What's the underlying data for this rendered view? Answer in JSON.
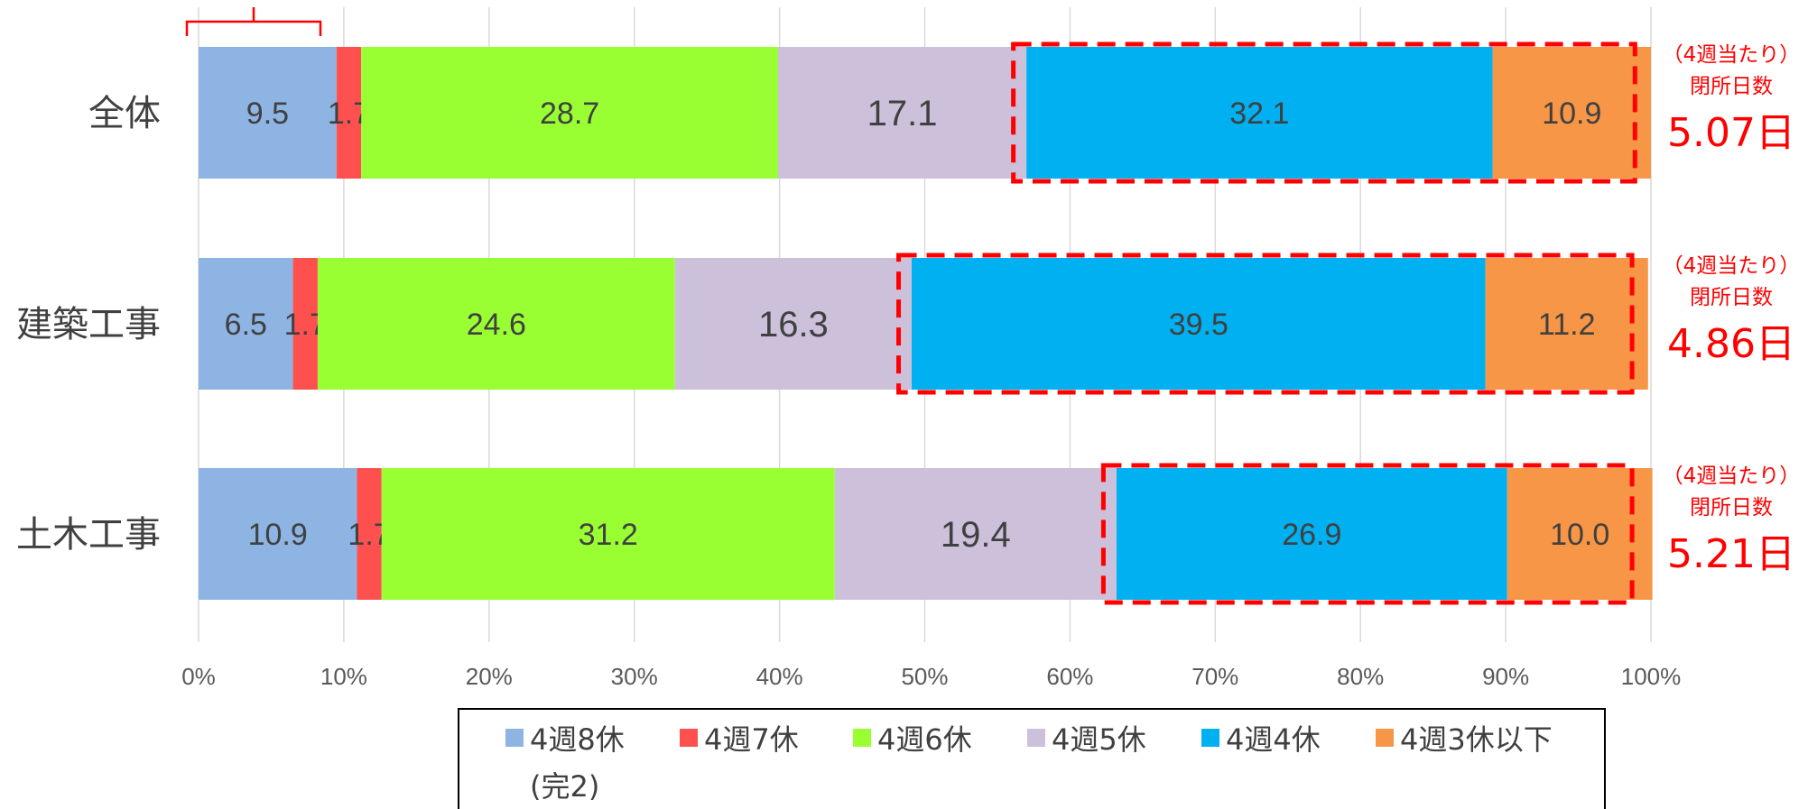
{
  "colors": {
    "grid": "#d9d9d9",
    "highlight": "#ff0000",
    "label": "#404040",
    "tick": "#595959"
  },
  "chart_data": {
    "type": "bar",
    "orientation": "horizontal",
    "stacked": true,
    "categories": [
      "全体",
      "建築工事",
      "土木工事"
    ],
    "series": [
      {
        "name": "4週8休\n(完2)",
        "color": "#8eb4e3",
        "values": [
          9.5,
          6.5,
          10.9
        ]
      },
      {
        "name": "4週7休",
        "color": "#ff5050",
        "values": [
          1.7,
          1.7,
          1.7
        ]
      },
      {
        "name": "4週6休",
        "color": "#99ff33",
        "values": [
          28.7,
          24.6,
          31.2
        ]
      },
      {
        "name": "4週5休",
        "color": "#ccc0da",
        "values": [
          17.1,
          16.3,
          19.4
        ]
      },
      {
        "name": "4週4休",
        "color": "#00b0f0",
        "values": [
          32.1,
          39.5,
          26.9
        ]
      },
      {
        "name": "4週3休以下",
        "color": "#f79646",
        "values": [
          10.9,
          11.2,
          10.0
        ]
      }
    ],
    "xlim": [
      0,
      100
    ],
    "x_ticks": [
      "0%",
      "10%",
      "20%",
      "30%",
      "40%",
      "50%",
      "60%",
      "70%",
      "80%",
      "90%",
      "100%"
    ],
    "grid": true,
    "legend_position": "bottom",
    "annotations": {
      "closure_label_line1": "（4週当たり）",
      "closure_label_line2": "閉所日数",
      "closure_values": [
        "5.07日",
        "4.86日",
        "5.21日"
      ],
      "dashed_boxes": "around 4週4休 and 4週3休以下 segments (plus adjoining part of 4週5休)"
    }
  }
}
